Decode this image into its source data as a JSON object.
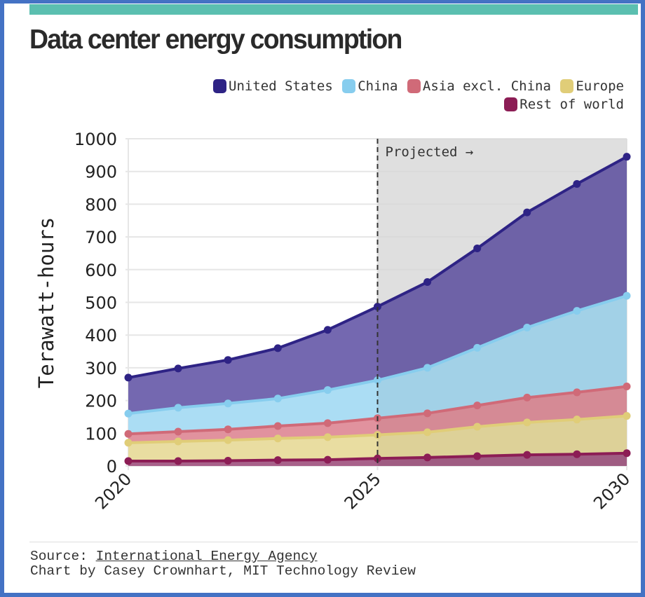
{
  "title": "Data center energy consumption",
  "legend": [
    {
      "label": "United States",
      "color": "#2E2385"
    },
    {
      "label": "China",
      "color": "#87CDEE"
    },
    {
      "label": "Asia excl. China",
      "color": "#D06A78"
    },
    {
      "label": "Europe",
      "color": "#E0CD78"
    },
    {
      "label": "Rest of world",
      "color": "#8C1D55"
    }
  ],
  "footer": {
    "source_prefix": "Source: ",
    "source_link": "International Energy Agency",
    "credit": "Chart by Casey Crownhart, MIT Technology Review"
  },
  "chart_data": {
    "type": "area",
    "stacked": true,
    "title": "Data center energy consumption",
    "xlabel": "",
    "ylabel": "Terawatt-hours",
    "x": [
      2020,
      2021,
      2022,
      2023,
      2024,
      2025,
      2026,
      2027,
      2028,
      2029,
      2030
    ],
    "xticks": [
      "2020",
      "2025",
      "2030"
    ],
    "ylim": [
      0,
      1000
    ],
    "yticks": [
      "0",
      "100",
      "200",
      "300",
      "400",
      "500",
      "600",
      "700",
      "800",
      "900",
      "1000"
    ],
    "grid": true,
    "legend_position": "top-right",
    "annotation": {
      "label": "Projected →",
      "x_start": 2025
    },
    "cumulative_series": [
      {
        "name": "Rest of world",
        "color": "#8C1D55",
        "fill": "#A55C86",
        "values": [
          15,
          15,
          16,
          18,
          19,
          23,
          26,
          30,
          34,
          36,
          39
        ]
      },
      {
        "name": "Europe",
        "color": "#E0CD78",
        "fill": "#E8DC9E",
        "values": [
          71,
          75,
          79,
          84,
          88,
          95,
          103,
          120,
          133,
          142,
          153
        ]
      },
      {
        "name": "Asia excl. China",
        "color": "#D06A78",
        "fill": "#E08E9B",
        "values": [
          98,
          105,
          112,
          122,
          131,
          146,
          161,
          185,
          209,
          225,
          243
        ]
      },
      {
        "name": "China",
        "color": "#87CDEE",
        "fill": "#A8DCF4",
        "values": [
          160,
          178,
          191,
          206,
          232,
          262,
          300,
          361,
          423,
          474,
          520
        ]
      },
      {
        "name": "United States",
        "color": "#2E2385",
        "fill": "#6F63AD",
        "values": [
          270,
          298,
          324,
          360,
          416,
          487,
          562,
          665,
          775,
          862,
          945
        ]
      }
    ]
  }
}
